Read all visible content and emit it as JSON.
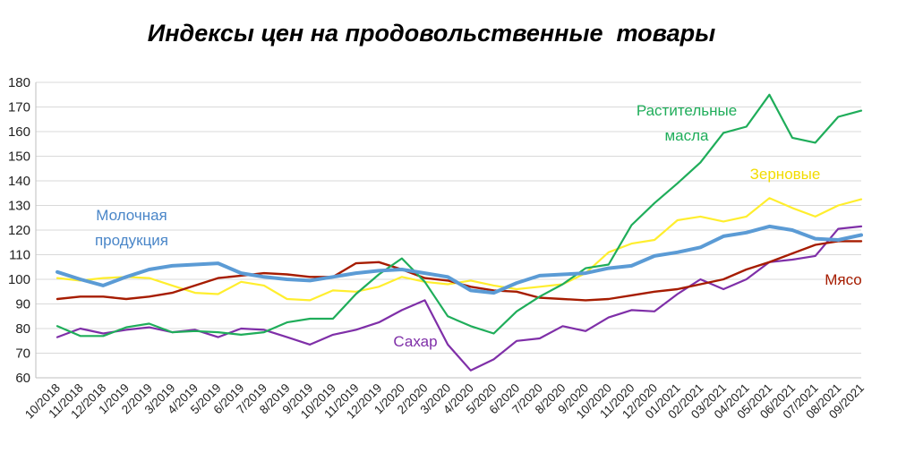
{
  "chart_data": {
    "type": "line",
    "title": "Индексы цен на продовольственные  товары",
    "xlabel": "",
    "ylabel": "",
    "ylim": [
      60,
      180
    ],
    "yticks": [
      60,
      70,
      80,
      90,
      100,
      110,
      120,
      130,
      140,
      150,
      160,
      170,
      180
    ],
    "grid": true,
    "x": [
      "10/2018",
      "11/2018",
      "12/2018",
      "1/2019",
      "2/2019",
      "3/2019",
      "4/2019",
      "5/2019",
      "6/2019",
      "7/2019",
      "8/2019",
      "9/2019",
      "10/2019",
      "11/2019",
      "12/2019",
      "1/2020",
      "2/2020",
      "3/2020",
      "4/2020",
      "5/2020",
      "6/2020",
      "7/2020",
      "8/2020",
      "9/2020",
      "10/2020",
      "11/2020",
      "12/2020",
      "01/2021",
      "02/2021",
      "03/2021",
      "04/2021",
      "05/2021",
      "06/2021",
      "07/2021",
      "08/2021",
      "09/2021"
    ],
    "series": [
      {
        "name": "Молочная продукция",
        "label_lines": [
          "Молочная",
          "продукция"
        ],
        "color": "#5b9bd5",
        "values": [
          103,
          100,
          97.5,
          101,
          104,
          105.5,
          106,
          106.5,
          102.5,
          101,
          100,
          99.5,
          101,
          102.5,
          103.5,
          104,
          102.5,
          101,
          95.5,
          94.5,
          98.5,
          101.5,
          102,
          102.5,
          104.5,
          105.5,
          109.5,
          111,
          113,
          117.5,
          119,
          121.5,
          120,
          116.5,
          116,
          118
        ]
      },
      {
        "name": "Растительные масла",
        "label_lines": [
          "Растительные",
          "масла"
        ],
        "color": "#1fad5a",
        "values": [
          81,
          77,
          77,
          80.5,
          82,
          78.5,
          79,
          78.5,
          77.5,
          78.5,
          82.5,
          84,
          84,
          94,
          102,
          108.5,
          99,
          85,
          81,
          78,
          87,
          93,
          98,
          104.5,
          106,
          122,
          131,
          139,
          147.5,
          159.5,
          162,
          175,
          157.5,
          155.5,
          166,
          168.5
        ]
      },
      {
        "name": "Зерновые",
        "label_lines": [
          "Зерновые"
        ],
        "color": "#ffee2e",
        "values": [
          100.5,
          99.5,
          100.5,
          101,
          100.5,
          97.5,
          94.5,
          94,
          99,
          97.5,
          92,
          91.5,
          95.5,
          95,
          97,
          101,
          99,
          98,
          99.5,
          97.5,
          96,
          97,
          98,
          102.5,
          111,
          114.5,
          116,
          124,
          125.5,
          123.5,
          125.5,
          133,
          129,
          125.5,
          130,
          132.5
        ]
      },
      {
        "name": "Мясо",
        "label_lines": [
          "Мясо"
        ],
        "color": "#a61c00",
        "values": [
          92,
          93,
          93,
          92,
          93,
          94.5,
          97.5,
          100.5,
          101.5,
          102.5,
          102,
          101,
          101,
          106.5,
          107,
          104,
          100.5,
          99.5,
          97,
          95.5,
          95,
          92.5,
          92,
          91.5,
          92,
          93.5,
          95,
          96,
          98,
          100,
          104,
          107,
          110.5,
          114,
          115.5,
          115.5
        ]
      },
      {
        "name": "Сахар",
        "label_lines": [
          "Сахар"
        ],
        "color": "#7f2fa8",
        "values": [
          76.5,
          80,
          78,
          79.5,
          80.5,
          78.5,
          79.5,
          76.5,
          80,
          79.5,
          76.5,
          73.5,
          77.5,
          79.5,
          82.5,
          87.5,
          91.5,
          73.5,
          63,
          67.5,
          75,
          76,
          81,
          79,
          84.5,
          87.5,
          87,
          94,
          100,
          96,
          100,
          107,
          108,
          109.5,
          120.5,
          121.5
        ]
      }
    ]
  }
}
